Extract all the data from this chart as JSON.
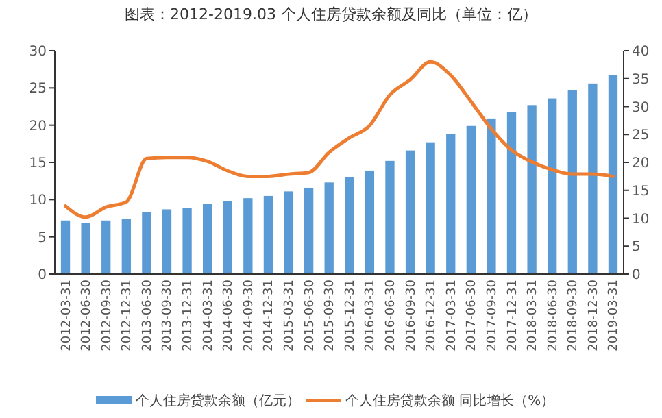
{
  "chart_data": {
    "type": "bar",
    "title": "图表：2012-2019.03 个人住房贷款余额及同比（单位：亿）",
    "categories": [
      "2012-03-31",
      "2012-06-30",
      "2012-09-30",
      "2012-12-31",
      "2013-06-30",
      "2013-09-30",
      "2013-12-31",
      "2014-03-31",
      "2014-06-30",
      "2014-09-30",
      "2014-12-31",
      "2015-03-31",
      "2015-06-30",
      "2015-09-30",
      "2015-12-31",
      "2016-03-31",
      "2016-06-30",
      "2016-09-30",
      "2016-12-31",
      "2017-03-31",
      "2017-06-30",
      "2017-09-30",
      "2017-12-31",
      "2018-03-31",
      "2018-06-30",
      "2018-09-30",
      "2018-12-30",
      "2019-03-31"
    ],
    "series": [
      {
        "name": "个人住房贷款余额（亿元）",
        "color": "#5b9bd5",
        "values": [
          7.2,
          6.9,
          7.2,
          7.4,
          8.3,
          8.7,
          8.9,
          9.4,
          9.8,
          10.2,
          10.5,
          11.1,
          11.6,
          12.3,
          13.0,
          13.9,
          15.2,
          16.6,
          17.7,
          18.8,
          19.9,
          20.9,
          21.8,
          22.7,
          23.6,
          24.7,
          25.6,
          26.7
        ]
      },
      {
        "name": "个人住房贷款余额 同比增长（%）",
        "type": "line",
        "axis": "y2",
        "color": "#ed7d31",
        "values": [
          12.2,
          10.2,
          12.0,
          12.9,
          20.7,
          20.9,
          20.9,
          20.2,
          18.5,
          17.5,
          17.5,
          17.9,
          18.2,
          21.8,
          24.4,
          26.6,
          32.1,
          34.8,
          38.0,
          35.6,
          30.9,
          26.0,
          22.2,
          20.1,
          18.7,
          17.9,
          17.9,
          17.5
        ]
      }
    ],
    "ylim": [
      0,
      30
    ],
    "yticks": [
      0,
      5,
      10,
      15,
      20,
      25,
      30
    ],
    "y2lim": [
      0,
      40
    ],
    "y2ticks": [
      0,
      5,
      10,
      15,
      20,
      25,
      30,
      35,
      40
    ],
    "legend": "bottom",
    "grid": false
  }
}
